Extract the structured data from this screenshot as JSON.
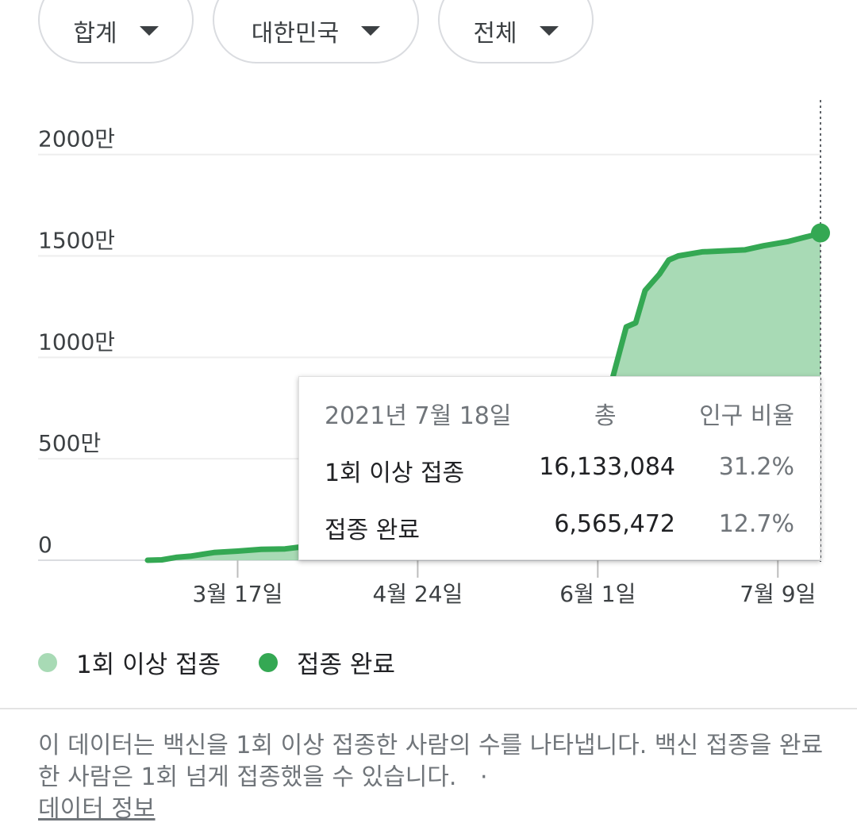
{
  "filters": [
    {
      "label": "합계"
    },
    {
      "label": "대한민국"
    },
    {
      "label": "전체"
    }
  ],
  "colors": {
    "first_dose": "#a8dab5",
    "completed": "#34a853",
    "line": "#34a853"
  },
  "chart_data": {
    "type": "area",
    "x_start": "2021-02-26",
    "x_ticks": [
      "3월 17일",
      "4월 24일",
      "6월 1일",
      "7월 9일"
    ],
    "x_tick_dates": [
      "2021-03-17",
      "2021-04-24",
      "2021-06-01",
      "2021-07-09"
    ],
    "y_ticks": [
      "0",
      "500만",
      "1000만",
      "1500만",
      "2000만"
    ],
    "ylim": [
      0,
      23000000
    ],
    "series": [
      {
        "name": "1회 이상 접종",
        "points": [
          [
            "2021-02-26",
            0
          ],
          [
            "2021-03-01",
            20000
          ],
          [
            "2021-03-04",
            140000
          ],
          [
            "2021-03-07",
            200000
          ],
          [
            "2021-03-12",
            380000
          ],
          [
            "2021-03-17",
            450000
          ],
          [
            "2021-03-22",
            540000
          ],
          [
            "2021-03-27",
            560000
          ],
          [
            "2021-04-01",
            700000
          ],
          [
            "2021-04-05",
            740000
          ],
          [
            "2021-06-01",
            6800000
          ],
          [
            "2021-06-03",
            8000000
          ],
          [
            "2021-06-07",
            11500000
          ],
          [
            "2021-06-09",
            11700000
          ],
          [
            "2021-06-11",
            13300000
          ],
          [
            "2021-06-14",
            14100000
          ],
          [
            "2021-06-16",
            14800000
          ],
          [
            "2021-06-18",
            15000000
          ],
          [
            "2021-06-23",
            15200000
          ],
          [
            "2021-07-02",
            15300000
          ],
          [
            "2021-07-06",
            15500000
          ],
          [
            "2021-07-11",
            15700000
          ],
          [
            "2021-07-16",
            16000000
          ],
          [
            "2021-07-18",
            16133084
          ]
        ]
      },
      {
        "name": "접종 완료",
        "points": [
          [
            "2021-02-26",
            0
          ],
          [
            "2021-04-05",
            5000
          ],
          [
            "2021-05-10",
            500000
          ],
          [
            "2021-06-01",
            1500000
          ],
          [
            "2021-06-18",
            4000000
          ],
          [
            "2021-07-01",
            5000000
          ],
          [
            "2021-07-18",
            6565472
          ]
        ]
      }
    ],
    "tooltip": {
      "date": "2021년 7월 18일",
      "col_total": "총",
      "col_ratio": "인구 비율",
      "rows": [
        {
          "label": "1회 이상 접종",
          "total": "16,133,084",
          "ratio": "31.2%"
        },
        {
          "label": "접종 완료",
          "total": "6,565,472",
          "ratio": "12.7%"
        }
      ]
    }
  },
  "legend": [
    {
      "label": "1회 이상 접종"
    },
    {
      "label": "접종 완료"
    }
  ],
  "note": {
    "text": "이 데이터는 백신을 1회 이상 접종한 사람의 수를 나타냅니다. 백신 접종을 완료한 사람은 1회 넘게 접종했을 수 있습니다.",
    "separator": "·",
    "link": "데이터 정보"
  }
}
